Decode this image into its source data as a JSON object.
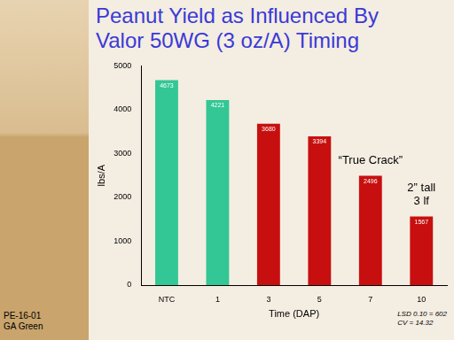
{
  "chart_data": {
    "type": "bar",
    "title": [
      "Peanut Yield as Influenced By",
      "Valor 50WG (3 oz/A) Timing"
    ],
    "x_label": "Time (DAP)",
    "y_label": "lbs/A",
    "categories": [
      "NTC",
      "1",
      "3",
      "5",
      "7",
      "10"
    ],
    "values": [
      4673,
      4221,
      3680,
      3394,
      2496,
      1567
    ],
    "colors": [
      "#33c795",
      "#33c795",
      "#c80f0f",
      "#c80f0f",
      "#c80f0f",
      "#c80f0f"
    ],
    "ylim": [
      0,
      5000
    ],
    "yticks": [
      0,
      1000,
      2000,
      3000,
      4000,
      5000
    ],
    "grid": false,
    "data_labels": true,
    "annotations": [
      {
        "category": "7",
        "text": [
          "“True Crack”"
        ]
      },
      {
        "category": "10",
        "text": [
          "2” tall",
          "3 lf"
        ]
      }
    ],
    "source": [
      "PE-16-01",
      "GA Green"
    ],
    "note": [
      "LSD 0.10 = 602",
      "CV = 14.32"
    ]
  }
}
